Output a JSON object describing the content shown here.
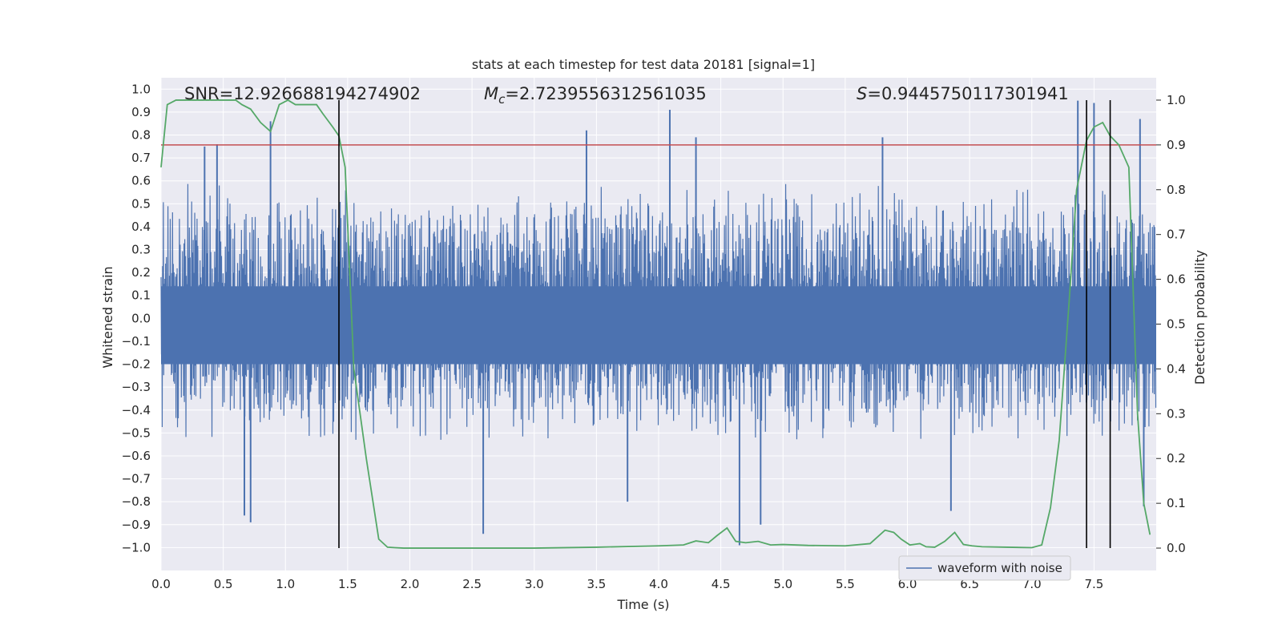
{
  "chart_data": {
    "type": "line",
    "title": "stats at each timestep for test data 20181 [signal=1]",
    "xlabel": "Time (s)",
    "ylabel": "Whitened strain",
    "ylabel_right": "Detection probability",
    "xlim": [
      0.0,
      8.0
    ],
    "ylim": [
      -1.1,
      1.05
    ],
    "ylim_right": [
      -0.05,
      1.05
    ],
    "x_ticks": [
      "0.0",
      "0.5",
      "1.0",
      "1.5",
      "2.0",
      "2.5",
      "3.0",
      "3.5",
      "4.0",
      "4.5",
      "5.0",
      "5.5",
      "6.0",
      "6.5",
      "7.0",
      "7.5"
    ],
    "y_ticks": [
      "1.0",
      "0.9",
      "0.8",
      "0.7",
      "0.6",
      "0.5",
      "0.4",
      "0.3",
      "0.2",
      "0.1",
      "0.0",
      "-0.1",
      "-0.2",
      "-0.3",
      "-0.4",
      "-0.5",
      "-0.6",
      "-0.7",
      "-0.8",
      "-0.9",
      "-1.0"
    ],
    "y_ticks_right": [
      "1.0",
      "0.9",
      "0.8",
      "0.7",
      "0.6",
      "0.5",
      "0.4",
      "0.3",
      "0.2",
      "0.1",
      "0.0"
    ],
    "grid": true,
    "legend_position": "bottom-right",
    "annotations": {
      "snr": "SNR=12.926688194274902",
      "mc_symbol": "M",
      "mc_sub": "c",
      "mc_value": "=2.7239556312561035",
      "s_symbol": "S",
      "s_value": "=0.9445750117301941"
    },
    "colors": {
      "waveform": "#4c72b0",
      "probability": "#55a868",
      "threshold": "#c44e52",
      "markers": "#000000",
      "plot_background": "#eaeaf2",
      "grid": "#ffffff"
    },
    "threshold_right": 0.9,
    "vertical_markers_x": [
      1.43,
      7.44,
      7.63
    ],
    "series": [
      {
        "name": "waveform with noise",
        "axis": "left",
        "style": "dense noise band",
        "typical_range": [
          -0.45,
          0.6
        ],
        "peaks_x": [
          0.88,
          0.35,
          0.45,
          3.42,
          4.09,
          4.3,
          5.8,
          7.37,
          7.5,
          7.87,
          0.67,
          0.72,
          2.59,
          4.65,
          4.82,
          3.75,
          6.35,
          7.9
        ],
        "peaks_y": [
          0.86,
          0.75,
          0.76,
          0.82,
          0.91,
          0.79,
          0.79,
          0.95,
          0.94,
          0.87,
          -0.86,
          -0.89,
          -0.94,
          -0.99,
          -0.9,
          -0.8,
          -0.84,
          -0.82
        ]
      },
      {
        "name": "",
        "axis": "right",
        "x": [
          0.0,
          0.05,
          0.12,
          0.2,
          0.4,
          0.6,
          0.65,
          0.72,
          0.8,
          0.88,
          0.95,
          1.02,
          1.08,
          1.15,
          1.25,
          1.3,
          1.38,
          1.43,
          1.48,
          1.55,
          1.65,
          1.75,
          1.82,
          1.88,
          1.95,
          2.1,
          2.5,
          3.0,
          3.5,
          4.0,
          4.2,
          4.3,
          4.4,
          4.47,
          4.55,
          4.62,
          4.7,
          4.8,
          4.9,
          5.0,
          5.2,
          5.5,
          5.7,
          5.82,
          5.89,
          5.95,
          6.02,
          6.1,
          6.15,
          6.22,
          6.3,
          6.38,
          6.45,
          6.52,
          6.6,
          6.8,
          7.0,
          7.08,
          7.15,
          7.22,
          7.3,
          7.36,
          7.44,
          7.5,
          7.57,
          7.63,
          7.7,
          7.78,
          7.85,
          7.9,
          7.95
        ],
        "y": [
          0.85,
          0.99,
          1.0,
          1.0,
          1.0,
          1.0,
          0.99,
          0.98,
          0.95,
          0.93,
          0.99,
          1.0,
          0.99,
          0.99,
          0.99,
          0.97,
          0.94,
          0.92,
          0.85,
          0.4,
          0.2,
          0.02,
          0.002,
          0.001,
          0.0,
          0.0,
          0.0,
          0.0,
          0.002,
          0.005,
          0.007,
          0.016,
          0.012,
          0.028,
          0.045,
          0.015,
          0.012,
          0.015,
          0.007,
          0.008,
          0.006,
          0.005,
          0.01,
          0.04,
          0.035,
          0.02,
          0.007,
          0.01,
          0.003,
          0.002,
          0.015,
          0.035,
          0.008,
          0.005,
          0.003,
          0.002,
          0.001,
          0.007,
          0.09,
          0.24,
          0.55,
          0.8,
          0.91,
          0.94,
          0.95,
          0.92,
          0.9,
          0.85,
          0.3,
          0.1,
          0.03
        ]
      }
    ]
  }
}
